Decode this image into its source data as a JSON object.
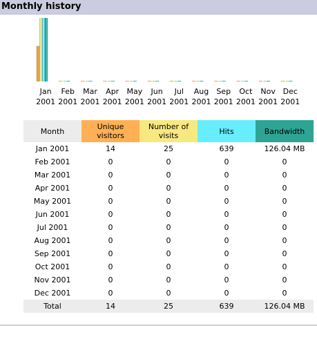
{
  "section": {
    "title": "Monthly history"
  },
  "colors": {
    "unique_visitors": "#ffb055",
    "visits": "#f8e880",
    "hits": "#66eeff",
    "bandwidth": "#2ea495",
    "header_band": "#cccce0",
    "neutral_cell": "#ececec"
  },
  "chart_data": {
    "type": "bar",
    "categories": [
      [
        "Jan",
        "2001"
      ],
      [
        "Feb",
        "2001"
      ],
      [
        "Mar",
        "2001"
      ],
      [
        "Apr",
        "2001"
      ],
      [
        "May",
        "2001"
      ],
      [
        "Jun",
        "2001"
      ],
      [
        "Jul",
        "2001"
      ],
      [
        "Aug",
        "2001"
      ],
      [
        "Sep",
        "2001"
      ],
      [
        "Oct",
        "2001"
      ],
      [
        "Nov",
        "2001"
      ],
      [
        "Dec",
        "2001"
      ]
    ],
    "series": [
      {
        "name": "Unique visitors",
        "values": [
          14,
          0,
          0,
          0,
          0,
          0,
          0,
          0,
          0,
          0,
          0,
          0
        ]
      },
      {
        "name": "Number of visits",
        "values": [
          25,
          0,
          0,
          0,
          0,
          0,
          0,
          0,
          0,
          0,
          0,
          0
        ]
      },
      {
        "name": "Hits",
        "values": [
          639,
          0,
          0,
          0,
          0,
          0,
          0,
          0,
          0,
          0,
          0,
          0
        ]
      },
      {
        "name": "Bandwidth",
        "values": [
          126.04,
          0,
          0,
          0,
          0,
          0,
          0,
          0,
          0,
          0,
          0,
          0
        ]
      }
    ],
    "grouping": "first two series share a scale; last two each scaled to their own maximum",
    "grid": false,
    "legend": "none"
  },
  "table": {
    "headers": {
      "month": "Month",
      "unique": [
        "Unique",
        "visitors"
      ],
      "visits": [
        "Number of",
        "visits"
      ],
      "hits": "Hits",
      "bandwidth": "Bandwidth"
    },
    "rows": [
      {
        "month": "Jan 2001",
        "unique": "14",
        "visits": "25",
        "hits": "639",
        "bandwidth": "126.04 MB"
      },
      {
        "month": "Feb 2001",
        "unique": "0",
        "visits": "0",
        "hits": "0",
        "bandwidth": "0"
      },
      {
        "month": "Mar 2001",
        "unique": "0",
        "visits": "0",
        "hits": "0",
        "bandwidth": "0"
      },
      {
        "month": "Apr 2001",
        "unique": "0",
        "visits": "0",
        "hits": "0",
        "bandwidth": "0"
      },
      {
        "month": "May 2001",
        "unique": "0",
        "visits": "0",
        "hits": "0",
        "bandwidth": "0"
      },
      {
        "month": "Jun 2001",
        "unique": "0",
        "visits": "0",
        "hits": "0",
        "bandwidth": "0"
      },
      {
        "month": "Jul 2001",
        "unique": "0",
        "visits": "0",
        "hits": "0",
        "bandwidth": "0"
      },
      {
        "month": "Aug 2001",
        "unique": "0",
        "visits": "0",
        "hits": "0",
        "bandwidth": "0"
      },
      {
        "month": "Sep 2001",
        "unique": "0",
        "visits": "0",
        "hits": "0",
        "bandwidth": "0"
      },
      {
        "month": "Oct 2001",
        "unique": "0",
        "visits": "0",
        "hits": "0",
        "bandwidth": "0"
      },
      {
        "month": "Nov 2001",
        "unique": "0",
        "visits": "0",
        "hits": "0",
        "bandwidth": "0"
      },
      {
        "month": "Dec 2001",
        "unique": "0",
        "visits": "0",
        "hits": "0",
        "bandwidth": "0"
      }
    ],
    "total": {
      "month": "Total",
      "unique": "14",
      "visits": "25",
      "hits": "639",
      "bandwidth": "126.04 MB"
    }
  }
}
